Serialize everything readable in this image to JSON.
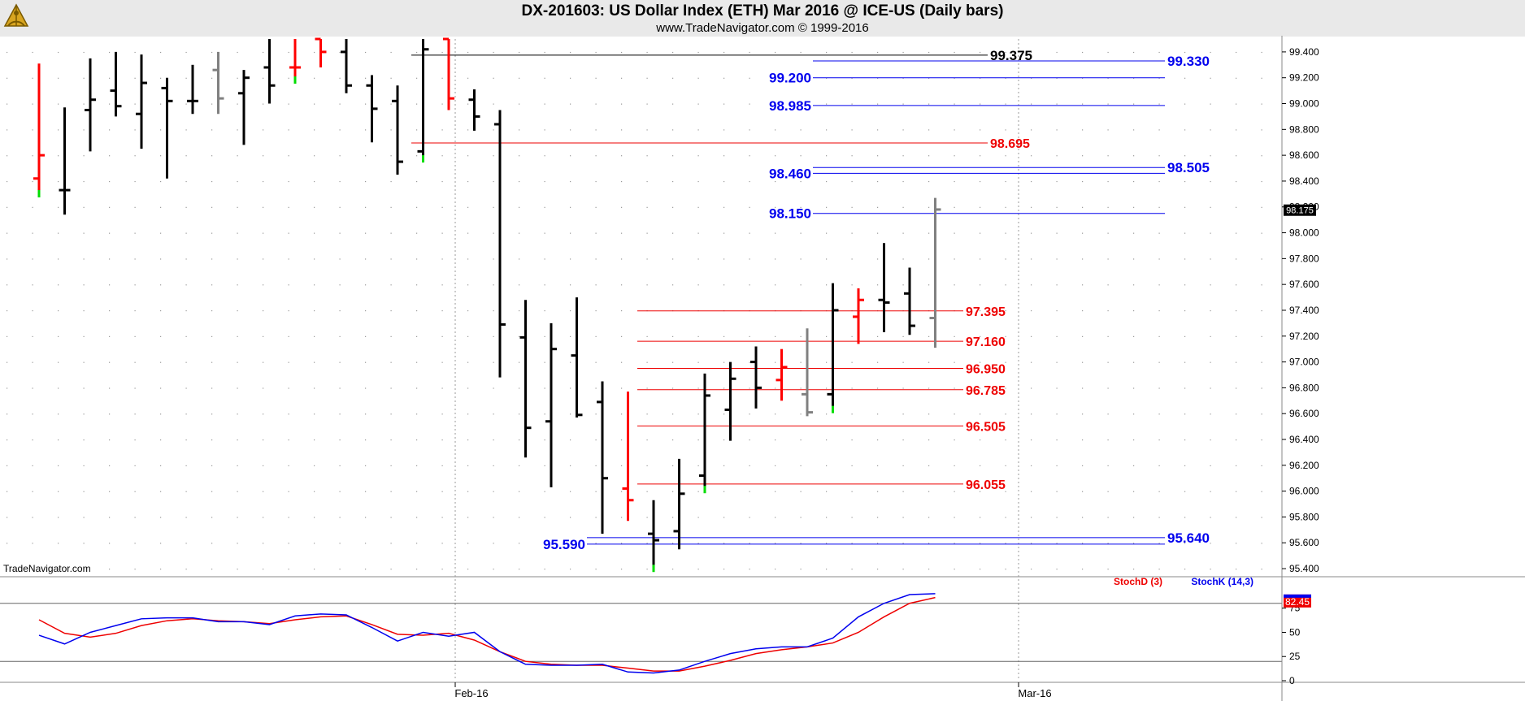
{
  "header": {
    "title": "DX-201603:  US Dollar Index (ETH) Mar 2016 @ ICE-US  (Daily bars)",
    "subtitle": "www.TradeNavigator.com © 1999-2016"
  },
  "watermark": "TradeNavigator.com",
  "colors": {
    "up": "#000000",
    "down": "#ff0000",
    "neutral": "#808080",
    "signal_green": "#00dd00",
    "level_blue": "#0000ee",
    "level_red": "#ee0000",
    "stochD": "#ee0000",
    "stochK": "#0000ee"
  },
  "chart_data": [
    {
      "type": "ohlc",
      "title": "DX-201603:  US Dollar Index (ETH) Mar 2016 @ ICE-US  (Daily bars)",
      "ylim": [
        95.35,
        99.5
      ],
      "y_ticks": [
        "99.400",
        "99.200",
        "99.000",
        "98.800",
        "98.600",
        "98.400",
        "98.200",
        "98.000",
        "97.800",
        "97.600",
        "97.400",
        "97.200",
        "97.000",
        "96.800",
        "96.600",
        "96.400",
        "96.200",
        "96.000",
        "95.800",
        "95.600",
        "95.400"
      ],
      "x_ticks": [
        {
          "label": "Feb-16",
          "index": 16
        },
        {
          "label": "Mar-16",
          "index": 38
        }
      ],
      "last_price": "98.175",
      "bars": [
        {
          "o": 98.42,
          "h": 99.31,
          "l": 98.28,
          "c": 98.6,
          "col": "down",
          "g": true
        },
        {
          "o": 98.33,
          "h": 98.97,
          "l": 98.14,
          "c": 98.33,
          "col": "up"
        },
        {
          "o": 98.95,
          "h": 99.35,
          "l": 98.63,
          "c": 99.03,
          "col": "up"
        },
        {
          "o": 99.1,
          "h": 99.4,
          "l": 98.9,
          "c": 98.98,
          "col": "up"
        },
        {
          "o": 98.92,
          "h": 99.38,
          "l": 98.65,
          "c": 99.16,
          "col": "up"
        },
        {
          "o": 99.12,
          "h": 99.2,
          "l": 98.42,
          "c": 99.02,
          "col": "up"
        },
        {
          "o": 99.02,
          "h": 99.3,
          "l": 98.92,
          "c": 99.02,
          "col": "up"
        },
        {
          "o": 99.26,
          "h": 99.4,
          "l": 98.92,
          "c": 99.04,
          "col": "neutral"
        },
        {
          "o": 99.08,
          "h": 99.26,
          "l": 98.68,
          "c": 99.2,
          "col": "up"
        },
        {
          "o": 99.28,
          "h": 99.5,
          "l": 99.0,
          "c": 99.14,
          "col": "up"
        },
        {
          "o": 99.28,
          "h": 99.5,
          "l": 99.16,
          "c": 99.28,
          "col": "down",
          "g": true
        },
        {
          "o": 99.5,
          "h": 99.5,
          "l": 99.28,
          "c": 99.4,
          "col": "down"
        },
        {
          "o": 99.4,
          "h": 99.5,
          "l": 99.08,
          "c": 99.14,
          "col": "up"
        },
        {
          "o": 99.14,
          "h": 99.22,
          "l": 98.7,
          "c": 98.96,
          "col": "up"
        },
        {
          "o": 99.02,
          "h": 99.14,
          "l": 98.45,
          "c": 98.55,
          "col": "up"
        },
        {
          "o": 98.63,
          "h": 99.5,
          "l": 98.55,
          "c": 99.42,
          "col": "up",
          "g": true
        },
        {
          "o": 99.5,
          "h": 99.5,
          "l": 98.95,
          "c": 99.04,
          "col": "down"
        },
        {
          "o": 99.03,
          "h": 99.11,
          "l": 98.79,
          "c": 98.9,
          "col": "up"
        },
        {
          "o": 98.84,
          "h": 98.95,
          "l": 96.88,
          "c": 97.29,
          "col": "up"
        },
        {
          "o": 97.19,
          "h": 97.48,
          "l": 96.26,
          "c": 96.49,
          "col": "up"
        },
        {
          "o": 96.54,
          "h": 97.3,
          "l": 96.03,
          "c": 97.1,
          "col": "up"
        },
        {
          "o": 97.05,
          "h": 97.5,
          "l": 96.57,
          "c": 96.59,
          "col": "up"
        },
        {
          "o": 96.69,
          "h": 96.85,
          "l": 95.67,
          "c": 96.1,
          "col": "up"
        },
        {
          "o": 96.02,
          "h": 96.77,
          "l": 95.77,
          "c": 95.93,
          "col": "down"
        },
        {
          "o": 95.67,
          "h": 95.93,
          "l": 95.38,
          "c": 95.62,
          "col": "up",
          "g": true
        },
        {
          "o": 95.69,
          "h": 96.25,
          "l": 95.55,
          "c": 95.98,
          "col": "up"
        },
        {
          "o": 96.12,
          "h": 96.91,
          "l": 95.99,
          "c": 96.74,
          "col": "up",
          "g": true
        },
        {
          "o": 96.63,
          "h": 97.0,
          "l": 96.39,
          "c": 96.87,
          "col": "up"
        },
        {
          "o": 97.0,
          "h": 97.12,
          "l": 96.64,
          "c": 96.8,
          "col": "up"
        },
        {
          "o": 96.86,
          "h": 97.1,
          "l": 96.7,
          "c": 96.96,
          "col": "down"
        },
        {
          "o": 96.75,
          "h": 97.26,
          "l": 96.58,
          "c": 96.61,
          "col": "neutral"
        },
        {
          "o": 96.75,
          "h": 97.61,
          "l": 96.61,
          "c": 97.4,
          "col": "up",
          "g": true
        },
        {
          "o": 97.35,
          "h": 97.57,
          "l": 97.14,
          "c": 97.48,
          "col": "down"
        },
        {
          "o": 97.48,
          "h": 97.92,
          "l": 97.23,
          "c": 97.46,
          "col": "up"
        },
        {
          "o": 97.53,
          "h": 97.73,
          "l": 97.21,
          "c": 97.28,
          "col": "up"
        },
        {
          "o": 97.34,
          "h": 98.27,
          "l": 97.11,
          "c": 98.18,
          "col": "neutral"
        }
      ],
      "levels": [
        {
          "value": 99.375,
          "label": "99.375",
          "color": "black",
          "x0": 506,
          "x1": 1215,
          "label_x": 1218,
          "anchor": "start"
        },
        {
          "value": 99.33,
          "label": "99.330",
          "color": "blue",
          "x0": 1000,
          "x1": 1433,
          "label_x": 1436,
          "anchor": "start"
        },
        {
          "value": 99.2,
          "label": "99.200",
          "color": "blue",
          "x0": 1000,
          "x1": 1433,
          "label_x": 1000,
          "anchor": "end"
        },
        {
          "value": 98.985,
          "label": "98.985",
          "color": "blue",
          "x0": 1000,
          "x1": 1433,
          "label_x": 1000,
          "anchor": "end"
        },
        {
          "value": 98.695,
          "label": "98.695",
          "color": "red",
          "x0": 506,
          "x1": 1215,
          "label_x": 1218,
          "anchor": "start"
        },
        {
          "value": 98.505,
          "label": "98.505",
          "color": "blue",
          "x0": 1000,
          "x1": 1433,
          "label_x": 1436,
          "anchor": "start"
        },
        {
          "value": 98.46,
          "label": "98.460",
          "color": "blue",
          "x0": 1000,
          "x1": 1433,
          "label_x": 1000,
          "anchor": "end"
        },
        {
          "value": 98.15,
          "label": "98.150",
          "color": "blue",
          "x0": 1000,
          "x1": 1433,
          "label_x": 1000,
          "anchor": "end"
        },
        {
          "value": 97.395,
          "label": "97.395",
          "color": "red",
          "x0": 784,
          "x1": 1185,
          "label_x": 1188,
          "anchor": "start"
        },
        {
          "value": 97.16,
          "label": "97.160",
          "color": "red",
          "x0": 784,
          "x1": 1185,
          "label_x": 1188,
          "anchor": "start"
        },
        {
          "value": 96.95,
          "label": "96.950",
          "color": "red",
          "x0": 784,
          "x1": 1185,
          "label_x": 1188,
          "anchor": "start"
        },
        {
          "value": 96.785,
          "label": "96.785",
          "color": "red",
          "x0": 784,
          "x1": 1185,
          "label_x": 1188,
          "anchor": "start"
        },
        {
          "value": 96.505,
          "label": "96.505",
          "color": "red",
          "x0": 784,
          "x1": 1185,
          "label_x": 1188,
          "anchor": "start"
        },
        {
          "value": 96.055,
          "label": "96.055",
          "color": "red",
          "x0": 784,
          "x1": 1185,
          "label_x": 1188,
          "anchor": "start"
        },
        {
          "value": 95.64,
          "label": "95.640",
          "color": "blue",
          "x0": 722,
          "x1": 1433,
          "label_x": 1436,
          "anchor": "start"
        },
        {
          "value": 95.59,
          "label": "95.590",
          "color": "blue",
          "x0": 722,
          "x1": 1433,
          "label_x": 722,
          "anchor": "end"
        }
      ]
    },
    {
      "type": "line",
      "ylim": [
        0,
        105
      ],
      "y_ticks": [
        "75",
        "50",
        "25",
        "0"
      ],
      "hlines": [
        80,
        20
      ],
      "last_value": "82.45",
      "series": [
        {
          "name": "StochD (3)",
          "color": "red",
          "values": [
            63,
            49,
            45,
            49,
            57,
            62,
            64,
            62,
            61,
            59,
            63,
            66,
            67,
            58,
            48,
            47,
            49,
            42,
            30,
            20,
            17,
            16,
            16,
            13,
            10,
            10,
            15,
            21,
            28,
            32,
            35,
            39,
            50,
            66,
            80,
            86
          ]
        },
        {
          "name": "StochK (14,3)",
          "color": "blue",
          "values": [
            47,
            38,
            50,
            57,
            64,
            65,
            65,
            61,
            61,
            58,
            67,
            69,
            68,
            55,
            41,
            50,
            46,
            50,
            30,
            17,
            16,
            16,
            17,
            9,
            8,
            11,
            20,
            28,
            33,
            35,
            35,
            44,
            66,
            80,
            89,
            90
          ]
        }
      ]
    }
  ]
}
